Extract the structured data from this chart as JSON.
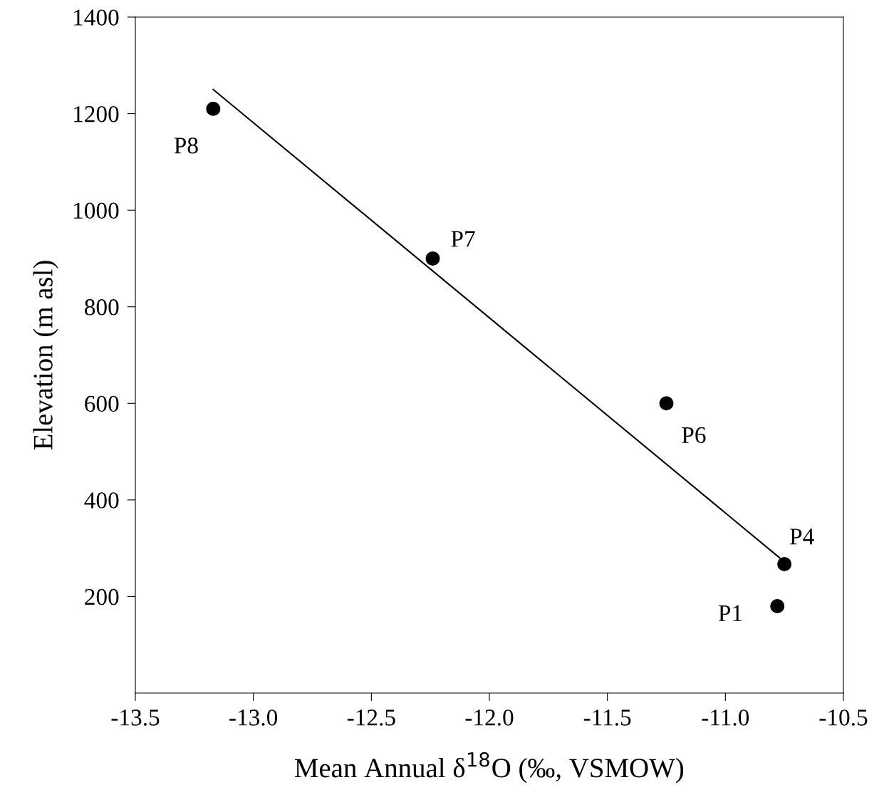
{
  "chart_data": {
    "type": "scatter",
    "xlabel": "Mean Annual δ$^{18}$O (‰, VSMOW)",
    "ylabel": "Elevation (m asl)",
    "series": [
      {
        "color": "#000000",
        "marker": "circle",
        "x": [
          -13.17,
          -12.24,
          -11.25,
          -10.75,
          -10.78
        ],
        "values": [
          1210,
          900,
          600,
          267,
          180
        ]
      },
      {
        "type": "line",
        "color": "#000000",
        "marker": "none",
        "line_style": "solid",
        "x": [
          -13.17,
          -10.77
        ],
        "values": [
          1250,
          280
        ]
      }
    ],
    "annotations": [
      {
        "text": "P8",
        "x": -13.17,
        "y": 1210
      },
      {
        "text": "P7",
        "x": -12.24,
        "y": 900
      },
      {
        "text": "P6",
        "x": -11.25,
        "y": 600
      },
      {
        "text": "P4",
        "x": -10.75,
        "y": 267
      },
      {
        "text": "P1",
        "x": -10.78,
        "y": 180
      }
    ],
    "xlim": [
      -13.5,
      -10.5
    ],
    "ylim": [
      0,
      1400
    ],
    "xticks": [
      -13.5,
      {
        "value": -13,
        "label": "-13.0"
      },
      -12.5,
      {
        "value": -12,
        "label": "-12.0"
      },
      -11.5,
      {
        "value": -11,
        "label": "-11.0"
      },
      -10.5
    ],
    "yticks": [
      200,
      400,
      600,
      800,
      1000,
      1200,
      1400
    ],
    "grid": false
  }
}
